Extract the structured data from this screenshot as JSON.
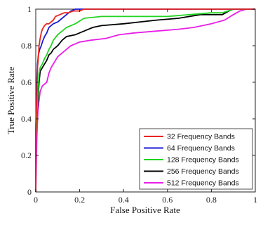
{
  "chart_data": {
    "type": "line",
    "title": "",
    "xlabel": "False Positive Rate",
    "ylabel": "True Positive Rate",
    "xlim": [
      0,
      1
    ],
    "ylim": [
      0,
      1
    ],
    "xticks": [
      "0",
      "0.2",
      "0.4",
      "0.6",
      "0.8",
      "1"
    ],
    "yticks": [
      "0",
      "0.2",
      "0.4",
      "0.6",
      "0.8",
      "1"
    ],
    "grid": false,
    "legend_position": "bottom-right",
    "series": [
      {
        "name": "32 Frequency Bands",
        "color": "#e8251f",
        "points": [
          [
            0,
            0
          ],
          [
            0,
            0.3
          ],
          [
            0.005,
            0.55
          ],
          [
            0.008,
            0.68
          ],
          [
            0.012,
            0.74
          ],
          [
            0.015,
            0.8
          ],
          [
            0.02,
            0.84
          ],
          [
            0.025,
            0.87
          ],
          [
            0.03,
            0.89
          ],
          [
            0.04,
            0.91
          ],
          [
            0.05,
            0.92
          ],
          [
            0.06,
            0.92
          ],
          [
            0.07,
            0.93
          ],
          [
            0.08,
            0.94
          ],
          [
            0.09,
            0.96
          ],
          [
            0.11,
            0.97
          ],
          [
            0.13,
            0.98
          ],
          [
            0.15,
            0.98
          ],
          [
            0.17,
            0.99
          ],
          [
            0.2,
            0.99
          ],
          [
            0.22,
            1.0
          ],
          [
            1,
            1.0
          ]
        ]
      },
      {
        "name": "64 Frequency Bands",
        "color": "#1a1ad4",
        "points": [
          [
            0,
            0
          ],
          [
            0,
            0.35
          ],
          [
            0.005,
            0.62
          ],
          [
            0.008,
            0.7
          ],
          [
            0.012,
            0.75
          ],
          [
            0.018,
            0.78
          ],
          [
            0.025,
            0.8
          ],
          [
            0.03,
            0.82
          ],
          [
            0.04,
            0.85
          ],
          [
            0.05,
            0.87
          ],
          [
            0.06,
            0.9
          ],
          [
            0.08,
            0.92
          ],
          [
            0.1,
            0.93
          ],
          [
            0.12,
            0.95
          ],
          [
            0.14,
            0.97
          ],
          [
            0.16,
            0.99
          ],
          [
            0.18,
            1.0
          ],
          [
            1,
            1.0
          ]
        ]
      },
      {
        "name": "128 Frequency Bands",
        "color": "#22d422",
        "points": [
          [
            0,
            0
          ],
          [
            0,
            0.3
          ],
          [
            0.01,
            0.55
          ],
          [
            0.015,
            0.65
          ],
          [
            0.02,
            0.68
          ],
          [
            0.03,
            0.7
          ],
          [
            0.04,
            0.73
          ],
          [
            0.05,
            0.75
          ],
          [
            0.06,
            0.78
          ],
          [
            0.07,
            0.8
          ],
          [
            0.08,
            0.83
          ],
          [
            0.1,
            0.86
          ],
          [
            0.12,
            0.88
          ],
          [
            0.14,
            0.9
          ],
          [
            0.18,
            0.92
          ],
          [
            0.22,
            0.95
          ],
          [
            0.3,
            0.96
          ],
          [
            0.45,
            0.96
          ],
          [
            0.6,
            0.96
          ],
          [
            0.7,
            0.97
          ],
          [
            0.8,
            0.98
          ],
          [
            0.85,
            0.98
          ],
          [
            0.9,
            1.0
          ],
          [
            1,
            1.0
          ]
        ]
      },
      {
        "name": "256 Frequency Bands",
        "color": "#000000",
        "points": [
          [
            0,
            0
          ],
          [
            0,
            0.32
          ],
          [
            0.01,
            0.5
          ],
          [
            0.015,
            0.6
          ],
          [
            0.02,
            0.66
          ],
          [
            0.03,
            0.68
          ],
          [
            0.04,
            0.7
          ],
          [
            0.05,
            0.72
          ],
          [
            0.06,
            0.75
          ],
          [
            0.07,
            0.76
          ],
          [
            0.08,
            0.78
          ],
          [
            0.1,
            0.8
          ],
          [
            0.12,
            0.83
          ],
          [
            0.14,
            0.85
          ],
          [
            0.18,
            0.86
          ],
          [
            0.22,
            0.88
          ],
          [
            0.26,
            0.9
          ],
          [
            0.3,
            0.91
          ],
          [
            0.4,
            0.92
          ],
          [
            0.55,
            0.94
          ],
          [
            0.65,
            0.95
          ],
          [
            0.75,
            0.97
          ],
          [
            0.85,
            0.97
          ],
          [
            0.88,
            0.99
          ],
          [
            0.9,
            1.0
          ],
          [
            1,
            1.0
          ]
        ]
      },
      {
        "name": "512 Frequency Bands",
        "color": "#e81fe8",
        "points": [
          [
            0,
            0
          ],
          [
            0.005,
            0.3
          ],
          [
            0.01,
            0.45
          ],
          [
            0.02,
            0.55
          ],
          [
            0.03,
            0.58
          ],
          [
            0.05,
            0.6
          ],
          [
            0.06,
            0.65
          ],
          [
            0.07,
            0.68
          ],
          [
            0.08,
            0.7
          ],
          [
            0.09,
            0.72
          ],
          [
            0.1,
            0.74
          ],
          [
            0.12,
            0.76
          ],
          [
            0.14,
            0.78
          ],
          [
            0.16,
            0.8
          ],
          [
            0.2,
            0.82
          ],
          [
            0.25,
            0.83
          ],
          [
            0.32,
            0.84
          ],
          [
            0.38,
            0.86
          ],
          [
            0.45,
            0.87
          ],
          [
            0.55,
            0.88
          ],
          [
            0.65,
            0.89
          ],
          [
            0.72,
            0.9
          ],
          [
            0.8,
            0.92
          ],
          [
            0.86,
            0.94
          ],
          [
            0.9,
            0.97
          ],
          [
            0.93,
            0.99
          ],
          [
            0.96,
            1.0
          ],
          [
            1,
            1.0
          ]
        ]
      }
    ]
  }
}
